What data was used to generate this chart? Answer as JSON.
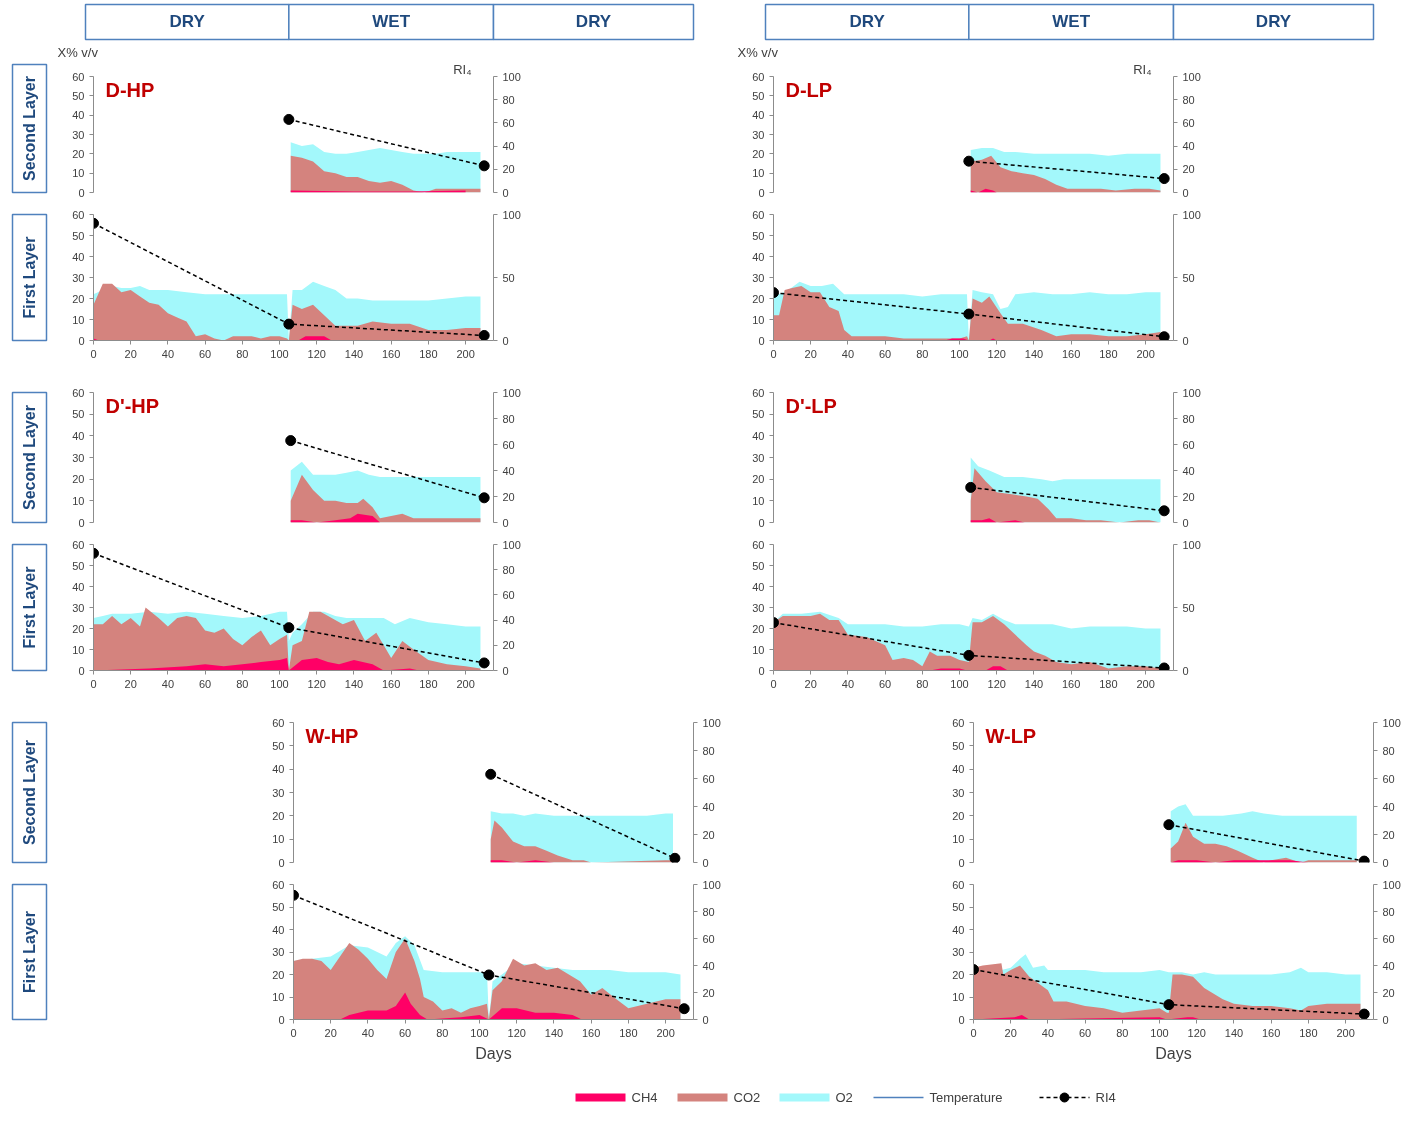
{
  "chart_data": [
    {
      "type": "other",
      "annotations": [
        "DRY",
        "WET",
        "DRY",
        "DRY",
        "WET",
        "DRY",
        "Second Layer",
        "First Layer",
        "Second Layer",
        "First Layer",
        "Second Layer",
        "First Layer"
      ]
    },
    {
      "type": "area",
      "annotations": [
        "D-HP"
      ],
      "ylabel": "X% v/v",
      "y2label": "RI₄",
      "legend": "bottom",
      "xlim": [
        0,
        215
      ],
      "ylim": [
        0,
        60
      ],
      "yticks": [
        0,
        10,
        20,
        30,
        40,
        50,
        60
      ],
      "y2lim": [
        0,
        100
      ],
      "y2ticks": [
        0,
        20,
        40,
        60,
        80,
        100
      ],
      "tick_labels": "y",
      "series": [
        {
          "name": "CH4",
          "color": "#ff0066",
          "x": [
            106,
            140,
            170,
            200
          ],
          "values": [
            1,
            0.5,
            0.5,
            1
          ]
        },
        {
          "name": "CO2",
          "color": "#d4837e",
          "x": [
            106,
            112,
            118,
            124,
            130,
            136,
            142,
            148,
            154,
            160,
            166,
            172,
            178,
            184,
            190,
            196,
            202,
            208
          ],
          "values": [
            19,
            18,
            16,
            11,
            10,
            8,
            8,
            6,
            5,
            6,
            4,
            1,
            0,
            2,
            2,
            2,
            2,
            2
          ]
        },
        {
          "name": "O2",
          "color": "#a3f8fb",
          "x": [
            106,
            112,
            118,
            124,
            130,
            136,
            142,
            148,
            154,
            160,
            166,
            172,
            178,
            184,
            190,
            196,
            202,
            208
          ],
          "values": [
            26,
            24,
            25,
            21,
            20,
            20,
            21,
            22,
            23,
            22,
            21,
            20,
            20,
            20,
            21,
            21,
            21,
            21
          ]
        },
        {
          "name": "Temperature",
          "type": "line",
          "color": "#4f81bd"
        },
        {
          "name": "RI4",
          "type": "line",
          "axis": "y2",
          "color": "#000000",
          "marker": "circle",
          "line_style": "dashed",
          "x": [
            105,
            210
          ],
          "values": [
            63,
            23
          ]
        }
      ]
    },
    {
      "type": "area",
      "xlim": [
        0,
        215
      ],
      "xticks": [
        0,
        20,
        40,
        60,
        80,
        100,
        120,
        140,
        160,
        180,
        200
      ],
      "ylim": [
        0,
        60
      ],
      "yticks": [
        0,
        10,
        20,
        30,
        40,
        50,
        60
      ],
      "y2lim": [
        0,
        100
      ],
      "y2ticks": [
        0,
        50,
        100
      ],
      "series": [
        {
          "color": "#ff0066",
          "x": [
            0,
            3,
            110,
            114,
            118,
            124,
            128,
            210
          ],
          "values": [
            1,
            0,
            0,
            2,
            2,
            2,
            0,
            0
          ]
        },
        {
          "color": "#d4837e",
          "x": [
            0,
            5,
            10,
            15,
            20,
            25,
            30,
            35,
            40,
            45,
            50,
            55,
            60,
            65,
            70,
            75,
            80,
            85,
            90,
            95,
            100,
            104,
            105,
            107,
            112,
            118,
            124,
            130,
            136,
            142,
            150,
            160,
            170,
            180,
            190,
            200,
            208
          ],
          "values": [
            17,
            27,
            27,
            23,
            24,
            21,
            18,
            17,
            13,
            11,
            9,
            2,
            3,
            1,
            0,
            2,
            2,
            2,
            1,
            2,
            2,
            1,
            0,
            17,
            15,
            17,
            12,
            7,
            7,
            7,
            9,
            8,
            8,
            5,
            5,
            6,
            6
          ]
        },
        {
          "color": "#a3f8fb",
          "x": [
            0,
            5,
            10,
            15,
            20,
            25,
            30,
            40,
            50,
            60,
            70,
            80,
            90,
            100,
            104,
            105,
            107,
            112,
            118,
            124,
            130,
            136,
            142,
            150,
            160,
            170,
            180,
            190,
            200,
            208
          ],
          "values": [
            22,
            24,
            26,
            25,
            25,
            26,
            24,
            24,
            23,
            22,
            22,
            22,
            22,
            22,
            22,
            0,
            24,
            24,
            28,
            26,
            24,
            20,
            20,
            19,
            19,
            19,
            19,
            20,
            21,
            21
          ]
        },
        {
          "type": "line",
          "axis": "y2",
          "color": "#000000",
          "marker": "circle",
          "line_style": "dashed",
          "x": [
            0,
            105,
            210
          ],
          "values": [
            93,
            13,
            4
          ]
        }
      ]
    },
    {
      "type": "area",
      "annotations": [
        "D'-HP"
      ],
      "xlim": [
        0,
        215
      ],
      "ylim": [
        0,
        60
      ],
      "yticks": [
        0,
        10,
        20,
        30,
        40,
        50,
        60
      ],
      "y2lim": [
        0,
        100
      ],
      "y2ticks": [
        0,
        20,
        40,
        60,
        80,
        100
      ],
      "tick_labels": "y",
      "series": [
        {
          "color": "#ff0066",
          "x": [
            106,
            112,
            120,
            130,
            138,
            142,
            150,
            154,
            208
          ],
          "values": [
            1,
            1,
            0,
            1,
            2,
            4,
            3,
            0,
            0
          ]
        },
        {
          "color": "#d4837e",
          "x": [
            106,
            112,
            118,
            124,
            130,
            136,
            142,
            145,
            150,
            154,
            160,
            166,
            172,
            178,
            184,
            190,
            196,
            202,
            208
          ],
          "values": [
            10,
            22,
            15,
            10,
            10,
            9,
            9,
            11,
            7,
            2,
            3,
            4,
            2,
            2,
            2,
            2,
            2,
            2,
            2
          ]
        },
        {
          "color": "#a3f8fb",
          "x": [
            106,
            112,
            118,
            124,
            130,
            136,
            142,
            148,
            154,
            160,
            166,
            172,
            178,
            184,
            190,
            196,
            202,
            208
          ],
          "values": [
            24,
            28,
            22,
            22,
            22,
            23,
            24,
            22,
            21,
            21,
            21,
            21,
            21,
            21,
            21,
            21,
            21,
            21
          ]
        },
        {
          "type": "line",
          "axis": "y2",
          "color": "#000000",
          "marker": "circle",
          "line_style": "dashed",
          "x": [
            106,
            210
          ],
          "values": [
            63,
            19
          ]
        }
      ]
    },
    {
      "type": "area",
      "xlim": [
        0,
        215
      ],
      "xticks": [
        0,
        20,
        40,
        60,
        80,
        100,
        120,
        140,
        160,
        180,
        200
      ],
      "ylim": [
        0,
        60
      ],
      "yticks": [
        0,
        10,
        20,
        30,
        40,
        50,
        60
      ],
      "y2lim": [
        0,
        100
      ],
      "y2ticks": [
        0,
        20,
        40,
        60,
        80,
        100
      ],
      "series": [
        {
          "color": "#ff0066",
          "x": [
            0,
            30,
            50,
            60,
            70,
            80,
            90,
            100,
            104,
            105,
            112,
            120,
            126,
            132,
            140,
            150,
            156,
            170,
            175
          ],
          "values": [
            0,
            1,
            2,
            3,
            2,
            3,
            4,
            5,
            6,
            0,
            5,
            6,
            4,
            3,
            5,
            3,
            0,
            1,
            0
          ]
        },
        {
          "color": "#d4837e",
          "x": [
            0,
            5,
            10,
            15,
            20,
            25,
            28,
            35,
            40,
            45,
            50,
            55,
            60,
            65,
            70,
            75,
            80,
            85,
            90,
            95,
            100,
            104,
            105,
            107,
            112,
            116,
            122,
            128,
            134,
            140,
            146,
            152,
            156,
            160,
            166,
            172,
            180,
            190,
            200,
            208
          ],
          "values": [
            22,
            22,
            26,
            22,
            25,
            21,
            30,
            25,
            21,
            25,
            26,
            25,
            19,
            18,
            20,
            15,
            12,
            16,
            19,
            12,
            15,
            17,
            0,
            12,
            14,
            28,
            28,
            25,
            22,
            24,
            14,
            18,
            12,
            6,
            14,
            10,
            5,
            3,
            2,
            1
          ]
        },
        {
          "color": "#a3f8fb",
          "x": [
            0,
            5,
            10,
            20,
            30,
            40,
            50,
            60,
            70,
            80,
            90,
            100,
            104,
            105,
            107,
            112,
            118,
            124,
            130,
            136,
            142,
            150,
            156,
            162,
            170,
            180,
            190,
            200,
            208
          ],
          "values": [
            25,
            26,
            27,
            27,
            28,
            27,
            28,
            27,
            26,
            25,
            26,
            28,
            28,
            14,
            18,
            22,
            28,
            28,
            26,
            25,
            25,
            25,
            25,
            22,
            25,
            23,
            22,
            21,
            21
          ]
        },
        {
          "type": "line",
          "axis": "y2",
          "color": "#000000",
          "marker": "circle",
          "line_style": "dashed",
          "x": [
            0,
            105,
            210
          ],
          "values": [
            93,
            34,
            6
          ]
        }
      ]
    },
    {
      "type": "area",
      "annotations": [
        "W-HP"
      ],
      "xlim": [
        0,
        215
      ],
      "ylim": [
        0,
        60
      ],
      "yticks": [
        0,
        10,
        20,
        30,
        40,
        50,
        60
      ],
      "y2lim": [
        0,
        100
      ],
      "y2ticks": [
        0,
        20,
        40,
        60,
        80,
        100
      ],
      "tick_labels": "y",
      "series": [
        {
          "color": "#ff0066",
          "x": [
            106,
            112,
            120,
            130,
            140
          ],
          "values": [
            1,
            1,
            0,
            1,
            0
          ]
        },
        {
          "color": "#d4837e",
          "x": [
            106,
            108,
            112,
            118,
            124,
            130,
            136,
            142,
            150,
            156,
            160,
            200,
            204
          ],
          "values": [
            10,
            18,
            15,
            9,
            7,
            7,
            5,
            3,
            1,
            1,
            0,
            1,
            1
          ]
        },
        {
          "color": "#a3f8fb",
          "x": [
            106,
            112,
            118,
            124,
            130,
            140,
            150,
            160,
            170,
            180,
            190,
            200,
            204
          ],
          "values": [
            22,
            21,
            21,
            20,
            21,
            20,
            20,
            20,
            20,
            20,
            20,
            21,
            21
          ]
        },
        {
          "type": "line",
          "axis": "y2",
          "color": "#000000",
          "marker": "circle",
          "line_style": "dashed",
          "x": [
            106,
            205
          ],
          "values": [
            63,
            3
          ]
        }
      ]
    },
    {
      "type": "area",
      "xlabel": "Days",
      "xlim": [
        0,
        215
      ],
      "xticks": [
        0,
        20,
        40,
        60,
        80,
        100,
        120,
        140,
        160,
        180,
        200
      ],
      "ylim": [
        0,
        60
      ],
      "yticks": [
        0,
        10,
        20,
        30,
        40,
        50,
        60
      ],
      "y2lim": [
        0,
        100
      ],
      "y2ticks": [
        0,
        20,
        40,
        60,
        80,
        100
      ],
      "series": [
        {
          "color": "#ff0066",
          "x": [
            0,
            25,
            30,
            40,
            50,
            55,
            60,
            63,
            68,
            72,
            90,
            100,
            105,
            112,
            120,
            130,
            140,
            150,
            155
          ],
          "values": [
            0,
            0,
            2,
            4,
            4,
            6,
            12,
            7,
            2,
            0,
            1,
            2,
            0,
            5,
            5,
            3,
            3,
            2,
            0
          ]
        },
        {
          "color": "#d4837e",
          "x": [
            0,
            5,
            10,
            15,
            20,
            25,
            30,
            35,
            40,
            45,
            50,
            55,
            60,
            65,
            68,
            70,
            75,
            80,
            85,
            90,
            95,
            100,
            104,
            105,
            107,
            112,
            118,
            124,
            130,
            136,
            142,
            148,
            154,
            160,
            166,
            172,
            180,
            190,
            200,
            208
          ],
          "values": [
            26,
            27,
            27,
            26,
            22,
            28,
            34,
            31,
            27,
            22,
            18,
            30,
            36,
            26,
            18,
            10,
            8,
            4,
            5,
            3,
            5,
            6,
            7,
            0,
            13,
            17,
            27,
            24,
            25,
            22,
            23,
            20,
            17,
            11,
            14,
            10,
            5,
            7,
            9,
            9
          ]
        },
        {
          "color": "#a3f8fb",
          "x": [
            0,
            10,
            20,
            30,
            40,
            50,
            55,
            60,
            65,
            70,
            80,
            90,
            100,
            104,
            105,
            107,
            112,
            120,
            130,
            140,
            150,
            160,
            170,
            180,
            190,
            200,
            208
          ],
          "values": [
            26,
            27,
            28,
            33,
            32,
            28,
            34,
            37,
            33,
            22,
            21,
            21,
            21,
            21,
            0,
            17,
            20,
            25,
            24,
            23,
            22,
            22,
            22,
            21,
            21,
            21,
            20
          ]
        },
        {
          "type": "line",
          "axis": "y2",
          "color": "#000000",
          "marker": "circle",
          "line_style": "dashed",
          "x": [
            0,
            105,
            210
          ],
          "values": [
            92,
            33,
            8
          ]
        }
      ]
    },
    {
      "type": "area",
      "annotations": [
        "D-LP"
      ],
      "ylabel": "X% v/v",
      "y2label": "RI₄",
      "xlim": [
        0,
        215
      ],
      "ylim": [
        0,
        60
      ],
      "yticks": [
        0,
        10,
        20,
        30,
        40,
        50,
        60
      ],
      "y2lim": [
        0,
        100
      ],
      "y2ticks": [
        0,
        20,
        40,
        60,
        80,
        100
      ],
      "tick_labels": "y",
      "series": [
        {
          "color": "#ff0066",
          "x": [
            106,
            110,
            114,
            118,
            120
          ],
          "values": [
            1,
            0,
            2,
            1,
            0
          ]
        },
        {
          "color": "#d4837e",
          "x": [
            106,
            112,
            117,
            122,
            128,
            134,
            140,
            146,
            152,
            158,
            166,
            176,
            184,
            194,
            202,
            208
          ],
          "values": [
            16,
            17,
            19,
            13,
            11,
            10,
            9,
            7,
            4,
            2,
            2,
            2,
            1,
            2,
            2,
            1
          ]
        },
        {
          "color": "#a3f8fb",
          "x": [
            106,
            112,
            118,
            124,
            130,
            140,
            150,
            160,
            170,
            180,
            190,
            200,
            208
          ],
          "values": [
            22,
            23,
            23,
            21,
            21,
            20,
            20,
            20,
            20,
            19,
            20,
            20,
            20
          ]
        },
        {
          "type": "line",
          "axis": "y2",
          "color": "#000000",
          "marker": "circle",
          "line_style": "dashed",
          "x": [
            105,
            210
          ],
          "values": [
            27,
            12
          ]
        }
      ]
    },
    {
      "type": "area",
      "xlim": [
        0,
        215
      ],
      "xticks": [
        0,
        20,
        40,
        60,
        80,
        100,
        120,
        140,
        160,
        180,
        200
      ],
      "ylim": [
        0,
        60
      ],
      "yticks": [
        0,
        10,
        20,
        30,
        40,
        50,
        60
      ],
      "y2lim": [
        0,
        100
      ],
      "y2ticks": [
        0,
        50,
        100
      ],
      "series": [
        {
          "color": "#ff0066",
          "x": [
            0,
            92,
            96,
            102,
            105,
            116,
            118,
            120
          ],
          "values": [
            0,
            0,
            1,
            1,
            0,
            0,
            1,
            0
          ]
        },
        {
          "color": "#d4837e",
          "x": [
            0,
            3,
            6,
            10,
            15,
            20,
            25,
            30,
            35,
            38,
            42,
            50,
            60,
            70,
            80,
            90,
            100,
            104,
            105,
            107,
            112,
            116,
            122,
            126,
            134,
            144,
            152,
            160,
            170,
            180,
            190,
            200,
            208
          ],
          "values": [
            12,
            12,
            24,
            25,
            26,
            23,
            23,
            16,
            14,
            5,
            2,
            2,
            2,
            1,
            1,
            1,
            1,
            2,
            0,
            20,
            18,
            21,
            13,
            8,
            8,
            5,
            2,
            3,
            3,
            2,
            2,
            3,
            4
          ]
        },
        {
          "color": "#a3f8fb",
          "x": [
            0,
            3,
            8,
            14,
            20,
            26,
            32,
            38,
            50,
            60,
            70,
            80,
            90,
            100,
            104,
            105,
            107,
            112,
            118,
            122,
            126,
            130,
            140,
            150,
            160,
            170,
            180,
            190,
            200,
            208
          ],
          "values": [
            22,
            22,
            24,
            28,
            26,
            26,
            27,
            22,
            22,
            22,
            22,
            21,
            22,
            22,
            22,
            0,
            24,
            23,
            22,
            15,
            16,
            22,
            23,
            22,
            22,
            23,
            22,
            22,
            23,
            23
          ]
        },
        {
          "type": "line",
          "axis": "y2",
          "color": "#000000",
          "marker": "circle",
          "line_style": "dashed",
          "x": [
            0,
            105,
            210
          ],
          "values": [
            38,
            21,
            3
          ]
        }
      ]
    },
    {
      "type": "area",
      "annotations": [
        "D'-LP"
      ],
      "xlim": [
        0,
        215
      ],
      "ylim": [
        0,
        60
      ],
      "yticks": [
        0,
        10,
        20,
        30,
        40,
        50,
        60
      ],
      "y2lim": [
        0,
        100
      ],
      "y2ticks": [
        0,
        20,
        40,
        60,
        80,
        100
      ],
      "tick_labels": "y",
      "series": [
        {
          "color": "#ff0066",
          "x": [
            106,
            112,
            116,
            120,
            130,
            135
          ],
          "values": [
            1,
            1,
            2,
            0,
            1,
            0
          ]
        },
        {
          "color": "#d4837e",
          "x": [
            106,
            108,
            114,
            120,
            128,
            136,
            142,
            148,
            152,
            160,
            168,
            176,
            186,
            196,
            202,
            208
          ],
          "values": [
            10,
            25,
            19,
            14,
            13,
            12,
            11,
            6,
            2,
            2,
            1,
            1,
            0,
            1,
            1,
            0
          ]
        },
        {
          "color": "#a3f8fb",
          "x": [
            106,
            110,
            116,
            124,
            134,
            144,
            150,
            156,
            166,
            176,
            186,
            196,
            208
          ],
          "values": [
            30,
            26,
            24,
            21,
            21,
            20,
            19,
            20,
            20,
            20,
            20,
            20,
            20
          ]
        },
        {
          "type": "line",
          "axis": "y2",
          "color": "#000000",
          "marker": "circle",
          "line_style": "dashed",
          "x": [
            106,
            210
          ],
          "values": [
            27,
            9
          ]
        }
      ]
    },
    {
      "type": "area",
      "xlim": [
        0,
        215
      ],
      "xticks": [
        0,
        20,
        40,
        60,
        80,
        100,
        120,
        140,
        160,
        180,
        200
      ],
      "ylim": [
        0,
        60
      ],
      "yticks": [
        0,
        10,
        20,
        30,
        40,
        50,
        60
      ],
      "y2lim": [
        0,
        100
      ],
      "y2ticks": [
        0,
        50,
        100
      ],
      "series": [
        {
          "color": "#ff0066",
          "x": [
            0,
            84,
            90,
            100,
            104,
            114,
            118,
            122,
            126
          ],
          "values": [
            0,
            0,
            1,
            1,
            0,
            0,
            2,
            2,
            0
          ]
        },
        {
          "color": "#d4837e",
          "x": [
            0,
            5,
            10,
            20,
            25,
            30,
            35,
            40,
            50,
            60,
            64,
            70,
            75,
            80,
            84,
            88,
            95,
            100,
            105,
            107,
            112,
            118,
            124,
            130,
            136,
            140,
            146,
            152,
            160,
            170,
            180,
            190,
            200,
            208
          ],
          "values": [
            23,
            26,
            26,
            26,
            27,
            24,
            24,
            17,
            16,
            12,
            5,
            6,
            5,
            2,
            9,
            7,
            7,
            5,
            4,
            23,
            23,
            26,
            22,
            17,
            12,
            9,
            7,
            4,
            3,
            4,
            1,
            2,
            2,
            1
          ]
        },
        {
          "color": "#a3f8fb",
          "x": [
            0,
            5,
            15,
            25,
            35,
            40,
            50,
            60,
            70,
            80,
            90,
            100,
            105,
            107,
            112,
            118,
            124,
            130,
            140,
            150,
            160,
            170,
            180,
            190,
            200,
            208
          ],
          "values": [
            23,
            27,
            27,
            28,
            25,
            22,
            22,
            22,
            21,
            21,
            22,
            22,
            21,
            25,
            24,
            27,
            24,
            22,
            22,
            22,
            20,
            21,
            21,
            21,
            20,
            20
          ]
        },
        {
          "type": "line",
          "axis": "y2",
          "color": "#000000",
          "marker": "circle",
          "line_style": "dashed",
          "x": [
            0,
            105,
            210
          ],
          "values": [
            38,
            12,
            2
          ]
        }
      ]
    },
    {
      "type": "area",
      "annotations": [
        "W-LP"
      ],
      "xlim": [
        0,
        215
      ],
      "ylim": [
        0,
        60
      ],
      "yticks": [
        0,
        10,
        20,
        30,
        40,
        50,
        60
      ],
      "y2lim": [
        0,
        100
      ],
      "y2ticks": [
        0,
        20,
        40,
        60,
        80,
        100
      ],
      "tick_labels": "y",
      "series": [
        {
          "color": "#ff0066",
          "x": [
            106,
            110,
            120,
            130,
            140,
            170,
            180
          ],
          "values": [
            0,
            1,
            1,
            0,
            1,
            1,
            0
          ]
        },
        {
          "color": "#d4837e",
          "x": [
            106,
            110,
            114,
            118,
            124,
            130,
            136,
            142,
            150,
            156,
            160,
            168,
            172,
            176,
            180,
            190,
            200,
            206
          ],
          "values": [
            6,
            9,
            17,
            11,
            8,
            8,
            7,
            5,
            2,
            0,
            1,
            2,
            1,
            0,
            1,
            1,
            1,
            1
          ]
        },
        {
          "color": "#a3f8fb",
          "x": [
            106,
            110,
            114,
            118,
            124,
            134,
            144,
            150,
            156,
            166,
            176,
            186,
            196,
            206
          ],
          "values": [
            22,
            24,
            25,
            20,
            20,
            20,
            21,
            22,
            21,
            20,
            20,
            20,
            20,
            20
          ]
        },
        {
          "type": "line",
          "axis": "y2",
          "color": "#000000",
          "marker": "circle",
          "line_style": "dashed",
          "x": [
            105,
            210
          ],
          "values": [
            27,
            1
          ]
        }
      ]
    },
    {
      "type": "area",
      "xlabel": "Days",
      "xlim": [
        0,
        215
      ],
      "xticks": [
        0,
        20,
        40,
        60,
        80,
        100,
        120,
        140,
        160,
        180,
        200
      ],
      "ylim": [
        0,
        60
      ],
      "yticks": [
        0,
        10,
        20,
        30,
        40,
        50,
        60
      ],
      "y2lim": [
        0,
        100
      ],
      "y2ticks": [
        0,
        20,
        40,
        60,
        80,
        100
      ],
      "series": [
        {
          "color": "#ff0066",
          "x": [
            0,
            22,
            26,
            30,
            100,
            104,
            115,
            118,
            122
          ],
          "values": [
            0,
            1,
            2,
            0,
            1,
            0,
            1,
            1,
            0
          ]
        },
        {
          "color": "#d4837e",
          "x": [
            0,
            5,
            15,
            16,
            20,
            25,
            30,
            35,
            40,
            43,
            50,
            60,
            70,
            80,
            90,
            100,
            104,
            105,
            107,
            112,
            118,
            124,
            128,
            134,
            140,
            150,
            160,
            170,
            176,
            180,
            190,
            200,
            208
          ],
          "values": [
            23,
            24,
            25,
            20,
            22,
            24,
            19,
            16,
            13,
            8,
            8,
            6,
            5,
            3,
            4,
            5,
            3,
            3,
            20,
            20,
            19,
            14,
            12,
            9,
            7,
            6,
            6,
            5,
            4,
            6,
            7,
            7,
            7
          ]
        },
        {
          "color": "#a3f8fb",
          "x": [
            15,
            20,
            25,
            28,
            32,
            38,
            40,
            50,
            60,
            70,
            80,
            90,
            100,
            105,
            107,
            112,
            118,
            124,
            130,
            140,
            150,
            160,
            170,
            176,
            180,
            190,
            200,
            208
          ],
          "values": [
            22,
            23,
            27,
            29,
            23,
            24,
            22,
            22,
            22,
            21,
            21,
            21,
            22,
            21,
            21,
            21,
            20,
            21,
            20,
            20,
            20,
            20,
            21,
            23,
            21,
            21,
            20,
            20
          ]
        },
        {
          "type": "line",
          "axis": "y2",
          "color": "#000000",
          "marker": "circle",
          "line_style": "dashed",
          "x": [
            0,
            105,
            210
          ],
          "values": [
            37,
            11,
            4
          ]
        }
      ]
    }
  ]
}
